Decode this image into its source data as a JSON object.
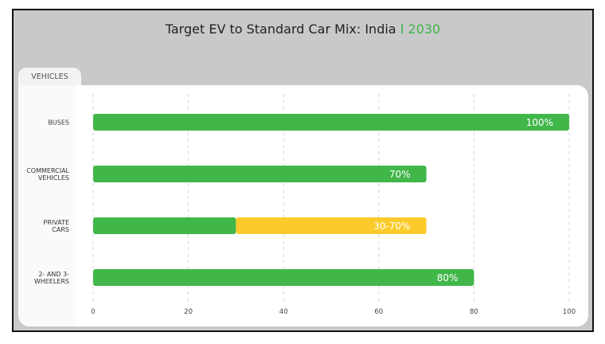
{
  "chart_data": {
    "type": "bar",
    "orientation": "horizontal",
    "stacked": true,
    "title": "Target EV to Standard Car Mix: India",
    "title_accent": "I 2030",
    "y_header": "VEHICLES",
    "categories": [
      [
        "BUSES"
      ],
      [
        "COMMERCIAL",
        "VEHICLES"
      ],
      [
        "PRIVATE",
        "CARS"
      ],
      [
        "2- AND 3-",
        "WHEELERS"
      ]
    ],
    "series": [
      {
        "values": [
          100,
          70,
          30,
          80
        ],
        "color": "#41b649"
      },
      {
        "values": [
          0,
          0,
          40,
          0
        ],
        "color": "#fccb2b"
      }
    ],
    "data_labels": [
      "100%",
      "70%",
      "30-70%",
      "80%"
    ],
    "xlim": [
      0,
      100
    ],
    "xticks": [
      0,
      20,
      40,
      60,
      80,
      100
    ],
    "grid": "vertical dashed",
    "colors": {
      "background": "#c9c9cb",
      "accent": "#3fb54a"
    }
  }
}
